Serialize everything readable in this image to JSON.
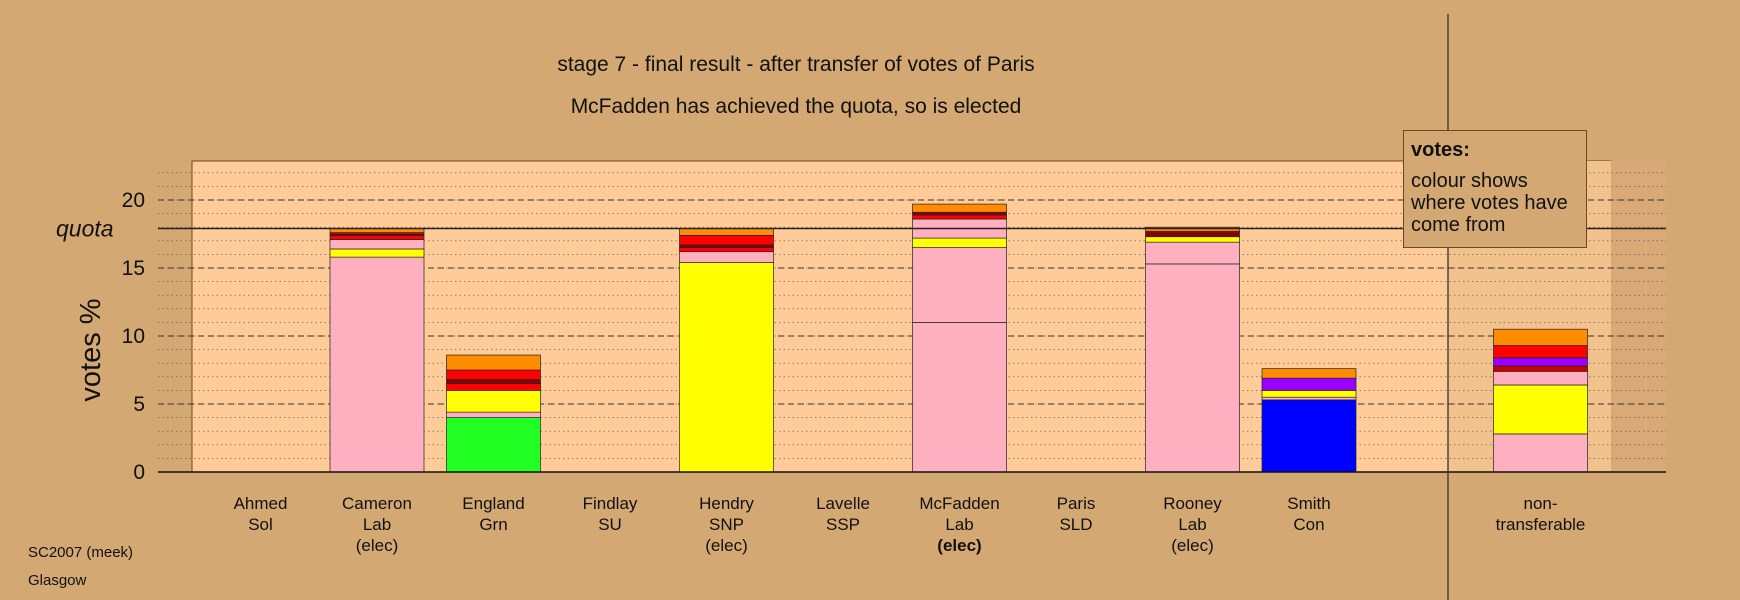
{
  "title": "stage 7 - final result - after transfer of votes of Paris",
  "subtitle": "McFadden has achieved the quota, so is elected",
  "footer": {
    "line1": "SC2007 (meek)",
    "line2": "Glasgow"
  },
  "legend": {
    "title": "votes:",
    "text": "colour shows where votes have come from"
  },
  "colors": {
    "background": "#d4a873",
    "plot_area": "#ffcc99",
    "grid": "#555555",
    "Lab": "#ffb0c0",
    "SNP": "#ffff00",
    "Grn": "#22ff22",
    "Con": "#0000ff",
    "SSP": "#ff0000",
    "Sol": "#8b0000",
    "Sol2": "#cc0000",
    "SU": "#9900ff",
    "Other": "#ff8c00"
  },
  "chart_data": {
    "type": "bar",
    "stacked": true,
    "ylabel": "votes %",
    "ylim": [
      0,
      23
    ],
    "yticks": [
      0,
      5,
      10,
      15,
      20
    ],
    "quota": {
      "value": 17.9,
      "label": "quota"
    },
    "grid": true,
    "legend_position": "top-right",
    "categories": [
      {
        "name": "Ahmed",
        "party": "Sol",
        "status": "",
        "bold": false,
        "segments": []
      },
      {
        "name": "Cameron",
        "party": "Lab",
        "status": "(elec)",
        "bold": false,
        "segments": [
          {
            "source": "Lab",
            "value": 15.8,
            "color": "#ffb0c0"
          },
          {
            "source": "SNP",
            "value": 0.6,
            "color": "#ffff00"
          },
          {
            "source": "Lab-transfer",
            "value": 0.7,
            "color": "#ffb0c0"
          },
          {
            "source": "SSP",
            "value": 0.3,
            "color": "#ff0000"
          },
          {
            "source": "Sol",
            "value": 0.1,
            "color": "#8b0000"
          },
          {
            "source": "SSP2",
            "value": 0.1,
            "color": "#ff0000"
          },
          {
            "source": "Other",
            "value": 0.3,
            "color": "#ff8c00"
          }
        ]
      },
      {
        "name": "England",
        "party": "Grn",
        "status": "",
        "bold": false,
        "segments": [
          {
            "source": "Grn",
            "value": 4.0,
            "color": "#22ff22"
          },
          {
            "source": "Lab",
            "value": 0.4,
            "color": "#ffb0c0"
          },
          {
            "source": "SNP",
            "value": 1.6,
            "color": "#ffff00"
          },
          {
            "source": "SSP",
            "value": 0.5,
            "color": "#ff0000"
          },
          {
            "source": "Sol",
            "value": 0.3,
            "color": "#8b0000"
          },
          {
            "source": "SSP2",
            "value": 0.7,
            "color": "#ff0000"
          },
          {
            "source": "Other",
            "value": 1.1,
            "color": "#ff8c00"
          }
        ]
      },
      {
        "name": "Findlay",
        "party": "SU",
        "status": "",
        "bold": false,
        "segments": []
      },
      {
        "name": "Hendry",
        "party": "SNP",
        "status": "(elec)",
        "bold": false,
        "segments": [
          {
            "source": "SNP",
            "value": 15.4,
            "color": "#ffff00"
          },
          {
            "source": "Lab",
            "value": 0.8,
            "color": "#ffb0c0"
          },
          {
            "source": "SSP",
            "value": 0.3,
            "color": "#ff0000"
          },
          {
            "source": "Sol",
            "value": 0.2,
            "color": "#8b0000"
          },
          {
            "source": "SSP2",
            "value": 0.7,
            "color": "#ff0000"
          },
          {
            "source": "Other",
            "value": 0.5,
            "color": "#ff8c00"
          }
        ]
      },
      {
        "name": "Lavelle",
        "party": "SSP",
        "status": "",
        "bold": false,
        "segments": []
      },
      {
        "name": "McFadden",
        "party": "Lab",
        "status": "(elec)",
        "bold": true,
        "segments": [
          {
            "source": "Lab",
            "value": 11.0,
            "color": "#ffb0c0"
          },
          {
            "source": "Lab-transfer",
            "value": 5.5,
            "color": "#ffb0c0"
          },
          {
            "source": "SNP",
            "value": 0.7,
            "color": "#ffff00"
          },
          {
            "source": "Lab2",
            "value": 1.4,
            "color": "#ffb0c0"
          },
          {
            "source": "SSP",
            "value": 0.3,
            "color": "#ff0000"
          },
          {
            "source": "Sol",
            "value": 0.2,
            "color": "#8b0000"
          },
          {
            "source": "Other",
            "value": 0.6,
            "color": "#ff8c00"
          }
        ]
      },
      {
        "name": "Paris",
        "party": "SLD",
        "status": "",
        "bold": false,
        "segments": []
      },
      {
        "name": "Rooney",
        "party": "Lab",
        "status": "(elec)",
        "bold": false,
        "segments": [
          {
            "source": "Lab",
            "value": 15.3,
            "color": "#ffb0c0"
          },
          {
            "source": "Lab-transfer",
            "value": 1.6,
            "color": "#ffb0c0"
          },
          {
            "source": "SNP",
            "value": 0.4,
            "color": "#ffff00"
          },
          {
            "source": "Sol",
            "value": 0.3,
            "color": "#8b0000"
          },
          {
            "source": "SSP",
            "value": 0.1,
            "color": "#ff0000"
          },
          {
            "source": "Other",
            "value": 0.3,
            "color": "#ff8c00"
          }
        ]
      },
      {
        "name": "Smith",
        "party": "Con",
        "status": "",
        "bold": false,
        "segments": [
          {
            "source": "Con",
            "value": 5.3,
            "color": "#0000ff"
          },
          {
            "source": "Lab",
            "value": 0.2,
            "color": "#ffb0c0"
          },
          {
            "source": "SNP",
            "value": 0.5,
            "color": "#ffff00"
          },
          {
            "source": "SU",
            "value": 0.9,
            "color": "#9900ff"
          },
          {
            "source": "Other",
            "value": 0.7,
            "color": "#ff8c00"
          }
        ]
      },
      {
        "name": "non-",
        "party": "transferable",
        "status": "",
        "bold": false,
        "segments": [
          {
            "source": "Lab",
            "value": 2.8,
            "color": "#ffb0c0"
          },
          {
            "source": "SNP",
            "value": 3.6,
            "color": "#ffff00"
          },
          {
            "source": "Lab2",
            "value": 1.0,
            "color": "#ffb0c0"
          },
          {
            "source": "Sol",
            "value": 0.4,
            "color": "#cc0000"
          },
          {
            "source": "SU",
            "value": 0.6,
            "color": "#9900ff"
          },
          {
            "source": "SSP",
            "value": 0.9,
            "color": "#ff0000"
          },
          {
            "source": "Other",
            "value": 1.2,
            "color": "#ff8c00"
          }
        ]
      }
    ]
  }
}
